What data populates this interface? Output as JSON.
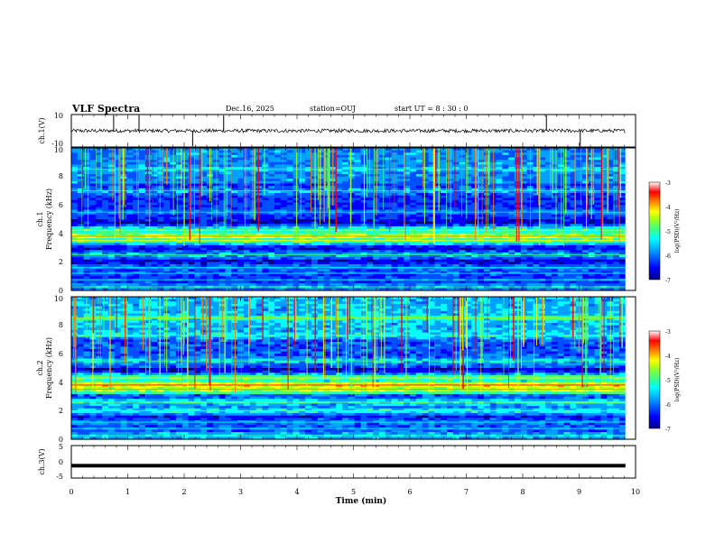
{
  "header": {
    "title": "VLF Spectra",
    "date": "Dec.16, 2025",
    "station": "station=OUJ",
    "start": "start UT =  8 : 30 : 0"
  },
  "chart_data": [
    {
      "type": "line",
      "name": "ch1-waveform",
      "ylabel": "ch.1(V)",
      "ylim": [
        -10,
        10
      ],
      "y_ticks": [
        "10",
        "-10"
      ],
      "xlim": [
        0,
        10
      ],
      "spike_times_min": [
        0.75,
        1.2,
        2.15,
        2.7,
        8.42,
        9.02
      ]
    },
    {
      "type": "heatmap",
      "name": "ch1-spectrogram",
      "ylabel_line1": "ch.1",
      "ylabel_line2": "Frequency (kHz)",
      "ylim": [
        0,
        10
      ],
      "y_ticks": [
        "0",
        "2",
        "4",
        "6",
        "8",
        "10"
      ],
      "xlim": [
        0,
        9.82
      ],
      "bands_khz": [
        {
          "freq": 0.25,
          "level": 0.35
        },
        {
          "freq": 0.75,
          "level": 0.25
        },
        {
          "freq": 1.2,
          "level": 0.25
        },
        {
          "freq": 1.6,
          "level": 0.3
        },
        {
          "freq": 2.5,
          "level": 0.35
        },
        {
          "freq": 3.5,
          "level": 0.55
        },
        {
          "freq": 3.8,
          "level": 0.7
        },
        {
          "freq": 4.2,
          "level": 0.55
        },
        {
          "freq": 5.5,
          "level": 0.3
        },
        {
          "freq": 7.0,
          "level": 0.35
        },
        {
          "freq": 8.5,
          "level": 0.4
        }
      ]
    },
    {
      "type": "heatmap",
      "name": "ch2-spectrogram",
      "ylabel_line1": "ch.2",
      "ylabel_line2": "Frequency (kHz)",
      "ylim": [
        0,
        10
      ],
      "y_ticks": [
        "0",
        "2",
        "4",
        "6",
        "8",
        "10"
      ],
      "xlim": [
        0,
        9.82
      ],
      "bands_khz": [
        {
          "freq": 0.25,
          "level": 0.4
        },
        {
          "freq": 0.75,
          "level": 0.3
        },
        {
          "freq": 1.2,
          "level": 0.3
        },
        {
          "freq": 2.0,
          "level": 0.45
        },
        {
          "freq": 2.6,
          "level": 0.45
        },
        {
          "freq": 3.5,
          "level": 0.7
        },
        {
          "freq": 3.8,
          "level": 0.75
        },
        {
          "freq": 4.3,
          "level": 0.55
        },
        {
          "freq": 5.5,
          "level": 0.4
        },
        {
          "freq": 7.3,
          "level": 0.45
        },
        {
          "freq": 8.5,
          "level": 0.5
        }
      ]
    },
    {
      "type": "line",
      "name": "ch3-waveform",
      "ylabel": "ch.3(V)",
      "ylim": [
        -5,
        5
      ],
      "y_ticks": [
        "5",
        "0",
        "-5"
      ],
      "level": -1.2,
      "xlim": [
        0,
        10
      ]
    }
  ],
  "x_axis": {
    "label": "Time (min)",
    "range": [
      0,
      10
    ],
    "ticks": [
      "0",
      "1",
      "2",
      "3",
      "4",
      "5",
      "6",
      "7",
      "8",
      "9",
      "10"
    ]
  },
  "colorbar": {
    "label": "log(PSD)(V²/Hz)",
    "range": [
      -7,
      -3
    ],
    "ticks": [
      "-3",
      "-4",
      "-5",
      "-6",
      "-7"
    ],
    "colormap": [
      "#000080",
      "#0000ff",
      "#00a0ff",
      "#00ffff",
      "#40ff80",
      "#a0ff20",
      "#ffff00",
      "#ff8000",
      "#ff0000",
      "#ffffff"
    ]
  }
}
